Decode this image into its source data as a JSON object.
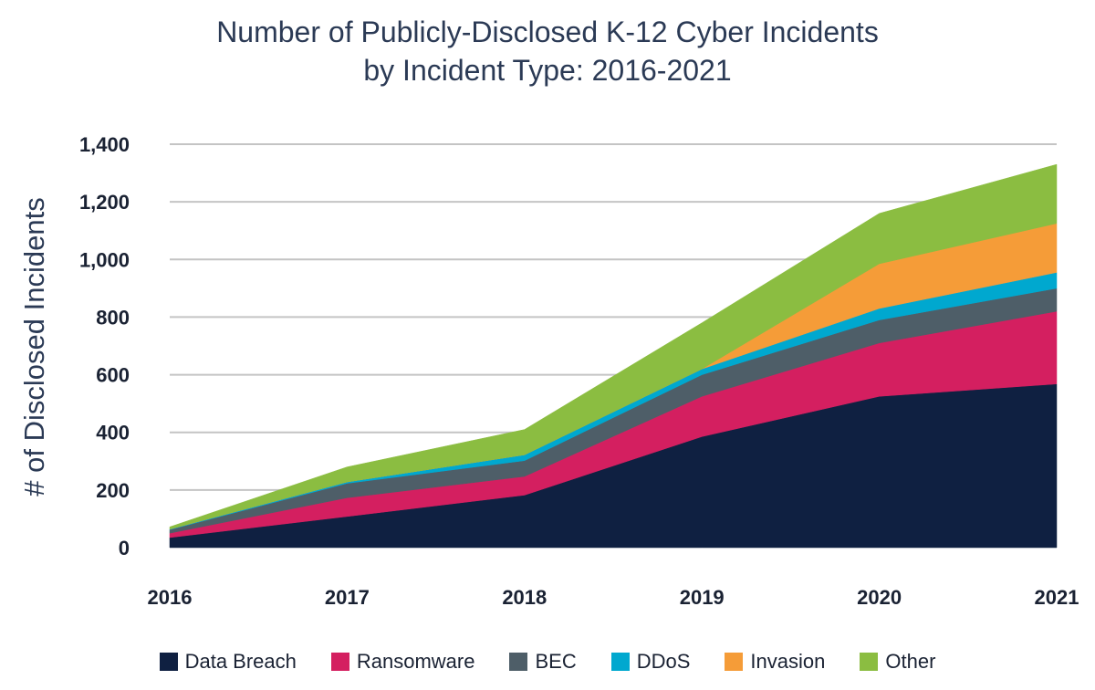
{
  "chart_data": {
    "type": "area",
    "stacked": true,
    "title_line1": "Number of Publicly-Disclosed K-12 Cyber Incidents",
    "title_line2": "by Incident Type: 2016-2021",
    "xlabel": "",
    "ylabel": "# of Disclosed Incidents",
    "x": [
      "2016",
      "2017",
      "2018",
      "2019",
      "2020",
      "2021"
    ],
    "y_ticks": [
      "0",
      "200",
      "400",
      "600",
      "800",
      "1,000",
      "1,200",
      "1,400"
    ],
    "ylim": [
      0,
      1400
    ],
    "grid": true,
    "legend_position": "bottom",
    "series": [
      {
        "name": "Data Breach",
        "color": "#0f2041",
        "values": [
          35,
          108,
          182,
          385,
          525,
          568
        ]
      },
      {
        "name": "Ransomware",
        "color": "#d41f60",
        "values": [
          15,
          65,
          65,
          140,
          185,
          252
        ]
      },
      {
        "name": "BEC",
        "color": "#4e5e68",
        "values": [
          12,
          50,
          55,
          75,
          80,
          80
        ]
      },
      {
        "name": "DDoS",
        "color": "#00a8cf",
        "values": [
          2,
          5,
          20,
          20,
          40,
          55
        ]
      },
      {
        "name": "Invasion",
        "color": "#f59c38",
        "values": [
          0,
          0,
          0,
          0,
          155,
          170
        ]
      },
      {
        "name": "Other",
        "color": "#8bbd41",
        "values": [
          8,
          52,
          88,
          160,
          175,
          205
        ]
      }
    ]
  }
}
